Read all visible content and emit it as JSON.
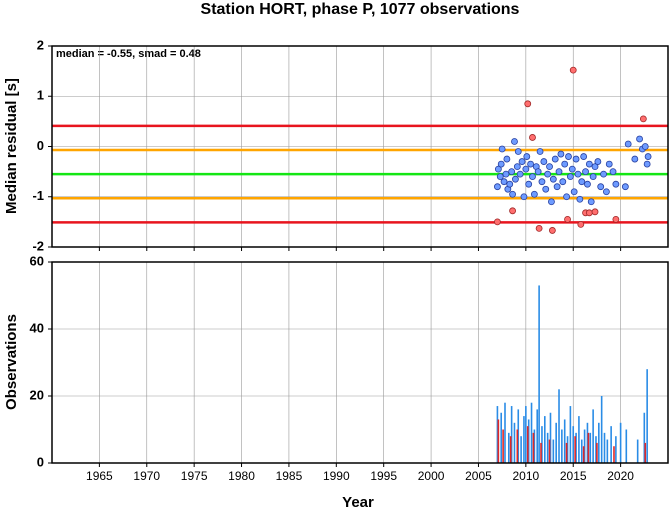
{
  "chart_data": [
    {
      "type": "scatter",
      "title": "Station HORT, phase P, 1077 observations",
      "ylabel": "Median residual [s]",
      "annotation": "median = -0.55, smad = 0.48",
      "xlim": [
        1960,
        2025
      ],
      "xticks": [
        1965,
        1970,
        1975,
        1980,
        1985,
        1990,
        1995,
        2000,
        2005,
        2010,
        2015,
        2020
      ],
      "xtick_labels": false,
      "ylim": [
        -2,
        2
      ],
      "yticks": [
        -2,
        -1,
        0,
        1,
        2
      ],
      "grid": true,
      "hlines": [
        {
          "value": 0.41,
          "color": "#e8141e"
        },
        {
          "value": -0.07,
          "color": "#ffa500"
        },
        {
          "value": -0.55,
          "color": "#14e614"
        },
        {
          "value": -1.03,
          "color": "#ffa500"
        },
        {
          "value": -1.51,
          "color": "#e8141e"
        }
      ],
      "series": [
        {
          "color": "#6e9bff",
          "edge": "#2840a0",
          "x": [
            2007.0,
            2007.1,
            2007.3,
            2007.4,
            2007.5,
            2007.7,
            2007.9,
            2008.0,
            2008.1,
            2008.3,
            2008.5,
            2008.6,
            2008.8,
            2008.9,
            2009.1,
            2009.2,
            2009.4,
            2009.6,
            2009.8,
            2010.0,
            2010.1,
            2010.3,
            2010.5,
            2010.7,
            2010.9,
            2011.1,
            2011.3,
            2011.5,
            2011.7,
            2011.9,
            2012.1,
            2012.3,
            2012.5,
            2012.7,
            2012.9,
            2013.1,
            2013.3,
            2013.5,
            2013.7,
            2013.9,
            2014.1,
            2014.3,
            2014.5,
            2014.7,
            2014.9,
            2015.1,
            2015.3,
            2015.5,
            2015.7,
            2015.9,
            2016.1,
            2016.3,
            2016.5,
            2016.7,
            2016.9,
            2017.1,
            2017.3,
            2017.6,
            2017.9,
            2018.2,
            2018.5,
            2018.8,
            2019.2,
            2019.5,
            2020.5,
            2020.8,
            2021.5,
            2022.0,
            2022.3,
            2022.6,
            2022.8,
            2022.9
          ],
          "y": [
            -0.8,
            -0.45,
            -0.6,
            -0.35,
            -0.05,
            -0.7,
            -0.55,
            -0.25,
            -0.85,
            -0.75,
            -0.5,
            -0.95,
            0.1,
            -0.65,
            -0.4,
            -0.1,
            -0.55,
            -0.3,
            -1.0,
            -0.45,
            -0.2,
            -0.75,
            -0.35,
            -0.6,
            -0.95,
            -0.4,
            -0.5,
            -0.1,
            -0.7,
            -0.3,
            -0.85,
            -0.55,
            -0.4,
            -1.1,
            -0.65,
            -0.25,
            -0.8,
            -0.5,
            -0.15,
            -0.7,
            -0.35,
            -1.0,
            -0.2,
            -0.6,
            -0.45,
            -0.9,
            -0.25,
            -0.55,
            -1.05,
            -0.7,
            -0.2,
            -0.5,
            -0.75,
            -0.35,
            -1.1,
            -0.6,
            -0.4,
            -0.3,
            -0.8,
            -0.55,
            -0.9,
            -0.35,
            -0.5,
            -0.75,
            -0.8,
            0.05,
            -0.25,
            0.15,
            -0.05,
            0.0,
            -0.35,
            -0.2
          ]
        },
        {
          "color": "#ff6e6e",
          "edge": "#a02828",
          "x": [
            2007.0,
            2008.6,
            2010.2,
            2010.7,
            2011.4,
            2012.8,
            2014.4,
            2015.0,
            2015.8,
            2016.3,
            2016.7,
            2017.3,
            2019.5,
            2022.4
          ],
          "y": [
            -1.5,
            -1.28,
            0.85,
            0.18,
            -1.63,
            -1.67,
            -1.45,
            1.52,
            -1.55,
            -1.32,
            -1.32,
            -1.3,
            -1.45,
            0.55
          ]
        }
      ]
    },
    {
      "type": "bar",
      "xlabel": "Year",
      "ylabel": "Observations",
      "xlim": [
        1960,
        2025
      ],
      "xticks": [
        1965,
        1970,
        1975,
        1980,
        1985,
        1990,
        1995,
        2000,
        2005,
        2010,
        2015,
        2020
      ],
      "xtick_labels": true,
      "ylim": [
        0,
        60
      ],
      "yticks": [
        0,
        20,
        40,
        60
      ],
      "grid": true,
      "series": [
        {
          "color": "#2a8ce6",
          "x": [
            2007.0,
            2007.4,
            2007.8,
            2008.2,
            2008.5,
            2008.8,
            2009.2,
            2009.5,
            2009.8,
            2010.0,
            2010.3,
            2010.6,
            2010.9,
            2011.2,
            2011.4,
            2011.7,
            2012.0,
            2012.3,
            2012.6,
            2012.9,
            2013.2,
            2013.5,
            2013.8,
            2014.1,
            2014.4,
            2014.7,
            2015.0,
            2015.3,
            2015.6,
            2015.9,
            2016.2,
            2016.5,
            2016.8,
            2017.1,
            2017.4,
            2017.7,
            2018.0,
            2018.3,
            2018.6,
            2019.0,
            2019.5,
            2020.0,
            2020.6,
            2021.8,
            2022.5,
            2022.8
          ],
          "values": [
            17,
            15,
            18,
            9,
            17,
            12,
            16,
            8,
            14,
            17,
            13,
            18,
            10,
            16,
            53,
            11,
            14,
            9,
            15,
            7,
            12,
            22,
            10,
            13,
            8,
            17,
            11,
            9,
            14,
            7,
            10,
            12,
            9,
            16,
            8,
            12,
            20,
            9,
            7,
            11,
            8,
            12,
            10,
            7,
            15,
            28
          ]
        },
        {
          "color": "#e02828",
          "x": [
            2007.1,
            2007.6,
            2008.4,
            2009.1,
            2010.2,
            2010.8,
            2011.6,
            2012.5,
            2014.3,
            2015.2,
            2016.1,
            2016.6,
            2017.5,
            2019.3,
            2022.6
          ],
          "values": [
            13,
            10,
            8,
            10,
            11,
            9,
            6,
            7,
            6,
            8,
            5,
            9,
            6,
            5,
            6
          ]
        }
      ]
    }
  ]
}
